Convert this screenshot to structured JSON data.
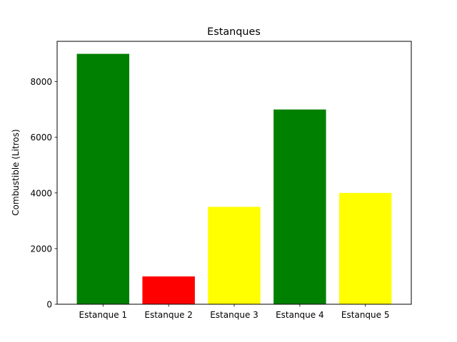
{
  "chart_data": {
    "type": "bar",
    "title": "Estanques",
    "xlabel": "",
    "ylabel": "Combustible (Litros)",
    "categories": [
      "Estanque 1",
      "Estanque 2",
      "Estanque 3",
      "Estanque 4",
      "Estanque 5"
    ],
    "values": [
      9000,
      1000,
      3500,
      7000,
      4000
    ],
    "bar_colors": [
      "#008000",
      "#ff0000",
      "#ffff00",
      "#008000",
      "#ffff00"
    ],
    "ylim": [
      0,
      9450
    ],
    "yticks": [
      0,
      2000,
      4000,
      6000,
      8000
    ],
    "ytick_labels": [
      "0",
      "2000",
      "4000",
      "6000",
      "8000"
    ],
    "grid": false,
    "legend": "none"
  }
}
